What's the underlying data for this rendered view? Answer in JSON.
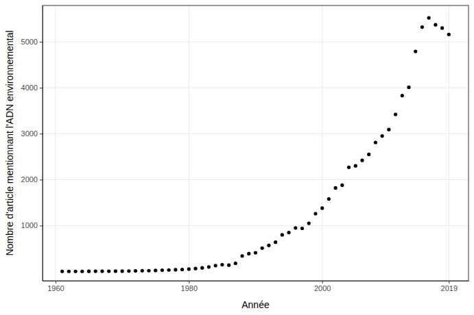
{
  "chart_data": {
    "type": "scatter",
    "x_label": "Année",
    "y_label": "Nombre d'article mentionnant l'ADN environnemental",
    "x": [
      1961,
      1962,
      1963,
      1964,
      1965,
      1966,
      1967,
      1968,
      1969,
      1970,
      1971,
      1972,
      1973,
      1974,
      1975,
      1976,
      1977,
      1978,
      1979,
      1980,
      1981,
      1982,
      1983,
      1984,
      1985,
      1986,
      1987,
      1988,
      1989,
      1990,
      1991,
      1992,
      1993,
      1994,
      1995,
      1996,
      1997,
      1998,
      1999,
      2000,
      2001,
      2002,
      2003,
      2004,
      2005,
      2006,
      2007,
      2008,
      2009,
      2010,
      2011,
      2012,
      2013,
      2014,
      2015,
      2016,
      2017,
      2018,
      2019
    ],
    "values": [
      5,
      5,
      5,
      5,
      6,
      7,
      8,
      8,
      9,
      10,
      12,
      15,
      18,
      20,
      25,
      30,
      35,
      40,
      45,
      55,
      65,
      80,
      100,
      130,
      150,
      140,
      180,
      340,
      390,
      410,
      510,
      570,
      640,
      800,
      850,
      950,
      940,
      1050,
      1260,
      1380,
      1580,
      1820,
      1880,
      2270,
      2300,
      2420,
      2550,
      2810,
      2950,
      3090,
      3420,
      3830,
      4010,
      4790,
      5320,
      5520,
      5370,
      5300,
      5160
    ],
    "color": "#000000",
    "xlim": [
      1958.05,
      2021.95
    ],
    "ylim": [
      -200,
      5790
    ],
    "xticks": [
      1960,
      1980,
      2000,
      2019
    ],
    "yticks": [
      1000,
      2000,
      3000,
      4000,
      5000
    ],
    "grid": true
  }
}
